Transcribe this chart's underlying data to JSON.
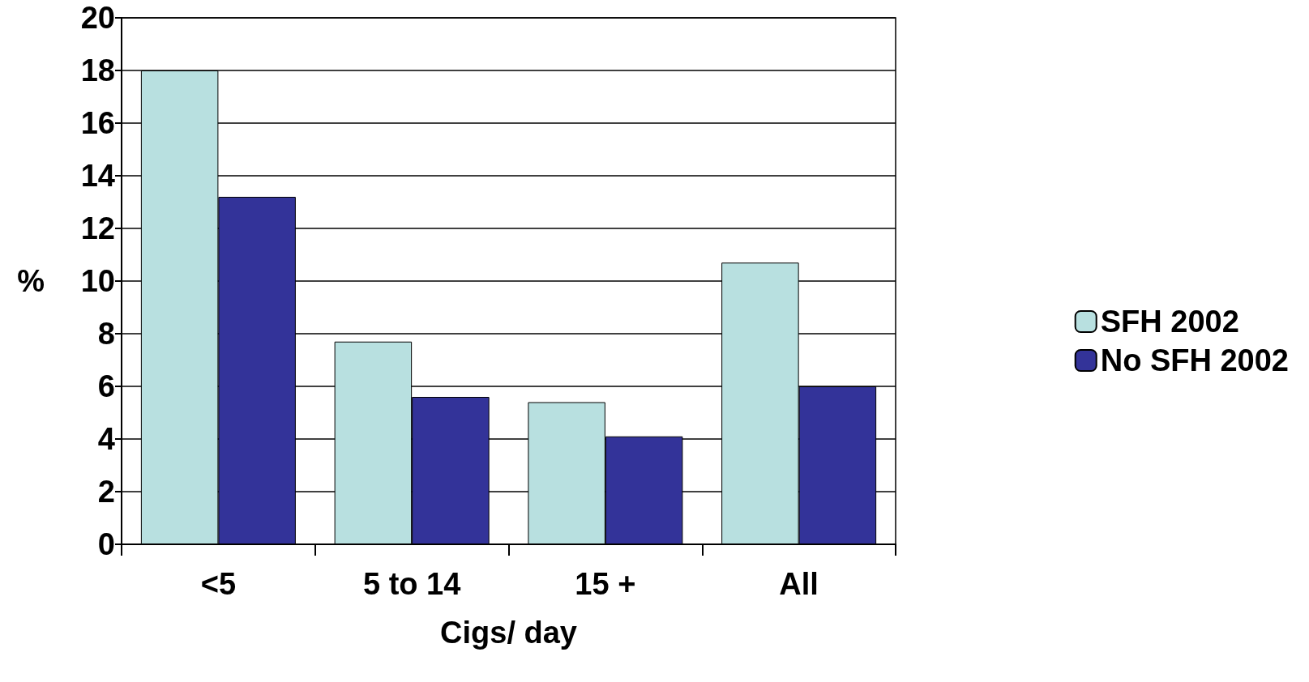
{
  "chart_data": {
    "type": "bar",
    "xlabel": "Cigs/ day",
    "ylabel": "%",
    "categories": [
      "<5",
      "5 to 14",
      "15 +",
      "All"
    ],
    "series": [
      {
        "name": "SFH 2002",
        "color": "#b8e0e0",
        "values": [
          18,
          7.7,
          5.4,
          10.7
        ]
      },
      {
        "name": "No SFH 2002",
        "color": "#333399",
        "values": [
          13.2,
          5.6,
          4.1,
          6.0
        ]
      }
    ],
    "ylim": [
      0,
      20
    ],
    "yticks": [
      0,
      2,
      4,
      6,
      8,
      10,
      12,
      14,
      16,
      18,
      20
    ],
    "grid": "y",
    "legend": "right"
  }
}
